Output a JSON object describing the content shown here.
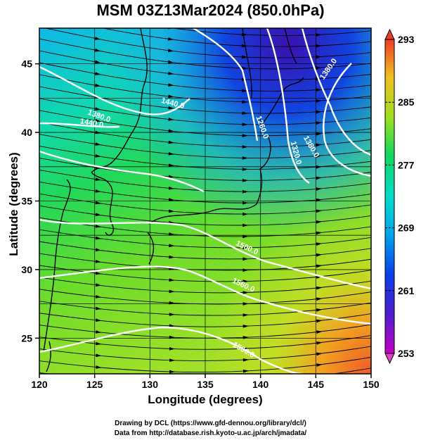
{
  "title": "MSM 03Z13Mar2024 (850.0hPa)",
  "xaxis": {
    "label": "Longitude (degrees)",
    "ticks": [
      120,
      125,
      130,
      135,
      140,
      145,
      150
    ],
    "range": [
      120,
      150
    ]
  },
  "yaxis": {
    "label": "Latitude  (degrees)",
    "ticks": [
      25,
      30,
      35,
      40,
      45
    ],
    "range": [
      22.4,
      47.6
    ]
  },
  "colorbar": {
    "ticks": [
      293,
      285,
      277,
      269,
      261,
      253
    ],
    "range": [
      253,
      293
    ]
  },
  "contours": [
    {
      "label": "1260.0"
    },
    {
      "label": "1320.0"
    },
    {
      "label": "1380.0"
    },
    {
      "label": "1440.0"
    },
    {
      "label": "1500.0"
    },
    {
      "label": "1560.0"
    },
    {
      "label": "1560.0"
    },
    {
      "label": "1380.0"
    },
    {
      "label": "1380.0"
    },
    {
      "label": "1440.0"
    }
  ],
  "credits": {
    "line1": "Drawing by DCL (https://www.gfd-dennou.org/library/dcl/)",
    "line2": "Data from http://database.rish.kyoto-u.ac.jp/arch/jmadata/"
  }
}
